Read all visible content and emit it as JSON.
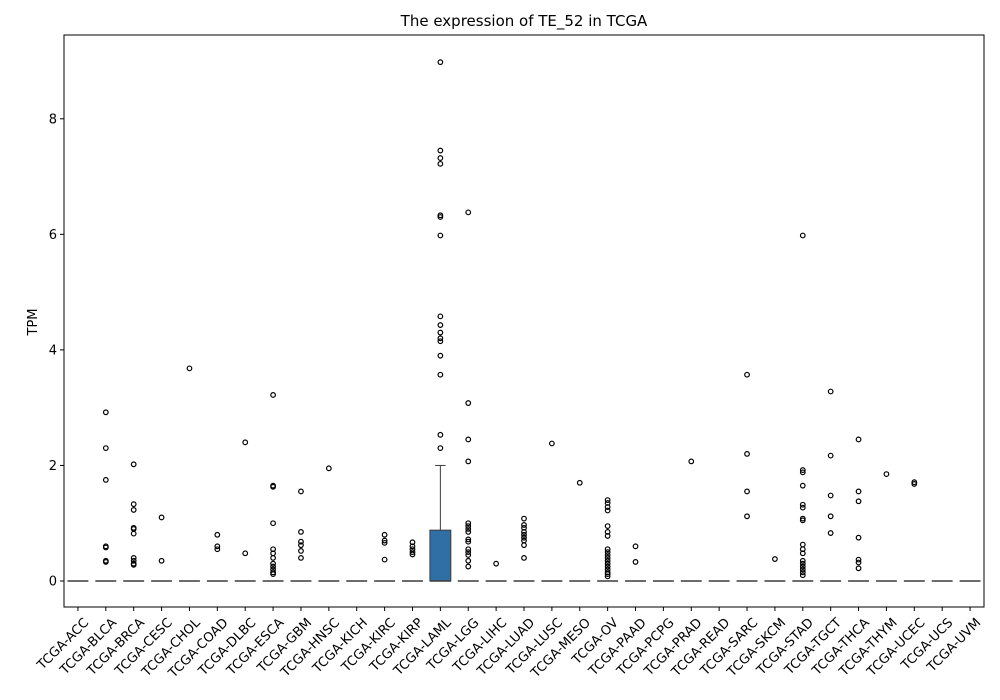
{
  "chart_data": {
    "type": "box",
    "title": "The expression of TE_52 in TCGA",
    "xlabel": "",
    "ylabel": "TPM",
    "ylim": [
      -0.45,
      9.45
    ],
    "yticks": [
      0,
      2,
      4,
      6,
      8
    ],
    "grid": false,
    "box_color": "#2f6fa6",
    "categories": [
      "TCGA-ACC",
      "TCGA-BLCA",
      "TCGA-BRCA",
      "TCGA-CESC",
      "TCGA-CHOL",
      "TCGA-COAD",
      "TCGA-DLBC",
      "TCGA-ESCA",
      "TCGA-GBM",
      "TCGA-HNSC",
      "TCGA-KICH",
      "TCGA-KIRC",
      "TCGA-KIRP",
      "TCGA-LAML",
      "TCGA-LGG",
      "TCGA-LIHC",
      "TCGA-LUAD",
      "TCGA-LUSC",
      "TCGA-MESO",
      "TCGA-OV",
      "TCGA-PAAD",
      "TCGA-PCPG",
      "TCGA-PRAD",
      "TCGA-READ",
      "TCGA-SARC",
      "TCGA-SKCM",
      "TCGA-STAD",
      "TCGA-TGCT",
      "TCGA-THCA",
      "TCGA-THYM",
      "TCGA-UCEC",
      "TCGA-UCS",
      "TCGA-UVM"
    ],
    "boxes": [
      {
        "q1": 0,
        "median": 0,
        "q3": 0,
        "whislo": 0,
        "whishi": 0,
        "fliers": []
      },
      {
        "q1": 0,
        "median": 0,
        "q3": 0,
        "whislo": 0,
        "whishi": 0,
        "fliers": [
          2.92,
          2.3,
          1.75,
          0.6,
          0.58,
          0.35,
          0.33
        ]
      },
      {
        "q1": 0,
        "median": 0,
        "q3": 0,
        "whislo": 0,
        "whishi": 0,
        "fliers": [
          2.02,
          1.33,
          1.23,
          0.92,
          0.9,
          0.82,
          0.4,
          0.35,
          0.3,
          0.28
        ]
      },
      {
        "q1": 0,
        "median": 0,
        "q3": 0,
        "whislo": 0,
        "whishi": 0,
        "fliers": [
          1.1,
          0.35
        ]
      },
      {
        "q1": 0,
        "median": 0,
        "q3": 0,
        "whislo": 0,
        "whishi": 0,
        "fliers": [
          3.68
        ]
      },
      {
        "q1": 0,
        "median": 0,
        "q3": 0,
        "whislo": 0,
        "whishi": 0,
        "fliers": [
          0.8,
          0.6,
          0.55
        ]
      },
      {
        "q1": 0,
        "median": 0,
        "q3": 0,
        "whislo": 0,
        "whishi": 0,
        "fliers": [
          2.4,
          0.48
        ]
      },
      {
        "q1": 0,
        "median": 0,
        "q3": 0,
        "whislo": 0,
        "whishi": 0,
        "fliers": [
          3.22,
          1.65,
          1.63,
          1.0,
          0.55,
          0.48,
          0.4,
          0.3,
          0.25,
          0.2,
          0.15,
          0.12
        ]
      },
      {
        "q1": 0,
        "median": 0,
        "q3": 0,
        "whislo": 0,
        "whishi": 0,
        "fliers": [
          1.55,
          0.85,
          0.68,
          0.62,
          0.52,
          0.4
        ]
      },
      {
        "q1": 0,
        "median": 0,
        "q3": 0,
        "whislo": 0,
        "whishi": 0,
        "fliers": [
          1.95
        ]
      },
      {
        "q1": 0,
        "median": 0,
        "q3": 0,
        "whislo": 0,
        "whishi": 0,
        "fliers": []
      },
      {
        "q1": 0,
        "median": 0,
        "q3": 0,
        "whislo": 0,
        "whishi": 0,
        "fliers": [
          0.8,
          0.7,
          0.66,
          0.37
        ]
      },
      {
        "q1": 0,
        "median": 0,
        "q3": 0,
        "whislo": 0,
        "whishi": 0,
        "fliers": [
          0.67,
          0.6,
          0.55,
          0.5,
          0.46
        ]
      },
      {
        "q1": 0,
        "median": 0,
        "q3": 0.88,
        "whislo": 0,
        "whishi": 2.0,
        "fliers": [
          8.98,
          7.45,
          7.32,
          7.22,
          6.33,
          6.3,
          5.98,
          4.58,
          4.43,
          4.3,
          4.2,
          4.15,
          3.9,
          3.57,
          2.53,
          2.3
        ]
      },
      {
        "q1": 0,
        "median": 0,
        "q3": 0,
        "whislo": 0,
        "whishi": 0,
        "fliers": [
          6.38,
          3.08,
          2.45,
          2.07,
          1.0,
          0.95,
          0.9,
          0.85,
          0.72,
          0.68,
          0.55,
          0.5,
          0.45,
          0.35,
          0.25
        ]
      },
      {
        "q1": 0,
        "median": 0,
        "q3": 0,
        "whislo": 0,
        "whishi": 0,
        "fliers": [
          0.3
        ]
      },
      {
        "q1": 0,
        "median": 0,
        "q3": 0,
        "whislo": 0,
        "whishi": 0,
        "fliers": [
          1.08,
          0.97,
          0.92,
          0.85,
          0.8,
          0.75,
          0.7,
          0.62,
          0.4
        ]
      },
      {
        "q1": 0,
        "median": 0,
        "q3": 0,
        "whislo": 0,
        "whishi": 0,
        "fliers": [
          2.38
        ]
      },
      {
        "q1": 0,
        "median": 0,
        "q3": 0,
        "whislo": 0,
        "whishi": 0,
        "fliers": [
          1.7
        ]
      },
      {
        "q1": 0,
        "median": 0,
        "q3": 0,
        "whislo": 0,
        "whishi": 0,
        "fliers": [
          1.4,
          1.35,
          1.28,
          1.22,
          0.95,
          0.85,
          0.78,
          0.55,
          0.5,
          0.45,
          0.4,
          0.35,
          0.3,
          0.25,
          0.2,
          0.15,
          0.12,
          0.08
        ]
      },
      {
        "q1": 0,
        "median": 0,
        "q3": 0,
        "whislo": 0,
        "whishi": 0,
        "fliers": [
          0.6,
          0.33
        ]
      },
      {
        "q1": 0,
        "median": 0,
        "q3": 0,
        "whislo": 0,
        "whishi": 0,
        "fliers": []
      },
      {
        "q1": 0,
        "median": 0,
        "q3": 0,
        "whislo": 0,
        "whishi": 0,
        "fliers": [
          2.07
        ]
      },
      {
        "q1": 0,
        "median": 0,
        "q3": 0,
        "whislo": 0,
        "whishi": 0,
        "fliers": []
      },
      {
        "q1": 0,
        "median": 0,
        "q3": 0,
        "whislo": 0,
        "whishi": 0,
        "fliers": [
          3.57,
          2.2,
          1.55,
          1.12
        ]
      },
      {
        "q1": 0,
        "median": 0,
        "q3": 0,
        "whislo": 0,
        "whishi": 0,
        "fliers": [
          0.38
        ]
      },
      {
        "q1": 0,
        "median": 0,
        "q3": 0,
        "whislo": 0,
        "whishi": 0,
        "fliers": [
          5.98,
          1.92,
          1.88,
          1.65,
          1.32,
          1.27,
          1.08,
          1.05,
          0.63,
          0.55,
          0.48,
          0.35,
          0.3,
          0.25,
          0.2,
          0.15,
          0.1
        ]
      },
      {
        "q1": 0,
        "median": 0,
        "q3": 0,
        "whislo": 0,
        "whishi": 0,
        "fliers": [
          3.28,
          2.17,
          1.48,
          1.12,
          0.83
        ]
      },
      {
        "q1": 0,
        "median": 0,
        "q3": 0,
        "whislo": 0,
        "whishi": 0,
        "fliers": [
          2.45,
          1.55,
          1.38,
          0.75,
          0.37,
          0.32,
          0.22
        ]
      },
      {
        "q1": 0,
        "median": 0,
        "q3": 0,
        "whislo": 0,
        "whishi": 0,
        "fliers": [
          1.85
        ]
      },
      {
        "q1": 0,
        "median": 0,
        "q3": 0,
        "whislo": 0,
        "whishi": 0,
        "fliers": [
          1.71,
          1.68
        ]
      },
      {
        "q1": 0,
        "median": 0,
        "q3": 0,
        "whislo": 0,
        "whishi": 0,
        "fliers": []
      },
      {
        "q1": 0,
        "median": 0,
        "q3": 0,
        "whislo": 0,
        "whishi": 0,
        "fliers": []
      }
    ]
  }
}
